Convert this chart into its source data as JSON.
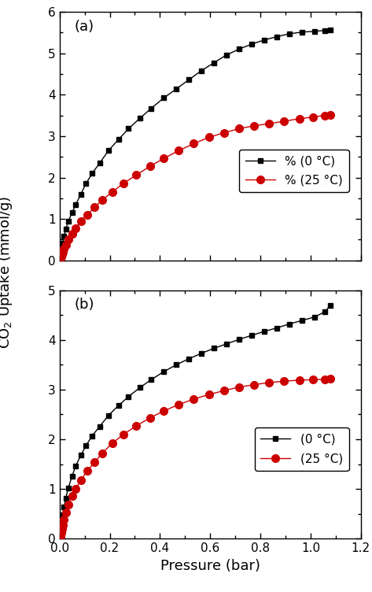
{
  "panel_a": {
    "label": "(a)",
    "black_x": [
      0.001,
      0.003,
      0.006,
      0.009,
      0.013,
      0.018,
      0.025,
      0.035,
      0.05,
      0.065,
      0.085,
      0.105,
      0.13,
      0.16,
      0.195,
      0.235,
      0.275,
      0.32,
      0.365,
      0.415,
      0.465,
      0.515,
      0.565,
      0.615,
      0.665,
      0.715,
      0.765,
      0.815,
      0.865,
      0.915,
      0.965,
      1.015,
      1.055,
      1.08
    ],
    "black_y": [
      0.04,
      0.1,
      0.18,
      0.28,
      0.42,
      0.58,
      0.75,
      0.95,
      1.15,
      1.35,
      1.6,
      1.85,
      2.1,
      2.35,
      2.65,
      2.92,
      3.18,
      3.43,
      3.67,
      3.92,
      4.14,
      4.36,
      4.58,
      4.77,
      4.96,
      5.1,
      5.22,
      5.32,
      5.4,
      5.47,
      5.51,
      5.53,
      5.55,
      5.56
    ],
    "red_x": [
      0.001,
      0.003,
      0.006,
      0.009,
      0.013,
      0.018,
      0.025,
      0.035,
      0.05,
      0.065,
      0.085,
      0.11,
      0.14,
      0.17,
      0.21,
      0.255,
      0.305,
      0.36,
      0.415,
      0.475,
      0.535,
      0.595,
      0.655,
      0.715,
      0.775,
      0.835,
      0.895,
      0.955,
      1.01,
      1.055,
      1.08
    ],
    "red_y": [
      0.02,
      0.05,
      0.09,
      0.14,
      0.2,
      0.28,
      0.38,
      0.5,
      0.65,
      0.78,
      0.95,
      1.1,
      1.28,
      1.46,
      1.65,
      1.86,
      2.06,
      2.27,
      2.46,
      2.65,
      2.82,
      2.97,
      3.08,
      3.18,
      3.25,
      3.3,
      3.36,
      3.42,
      3.46,
      3.5,
      3.52
    ],
    "legend_black": "% (0 °C)",
    "legend_red": "% (25 °C)",
    "ylim": [
      0,
      6
    ],
    "yticks": [
      0,
      1,
      2,
      3,
      4,
      5,
      6
    ]
  },
  "panel_b": {
    "label": "(b)",
    "black_x": [
      0.001,
      0.003,
      0.006,
      0.009,
      0.013,
      0.018,
      0.025,
      0.035,
      0.05,
      0.065,
      0.085,
      0.105,
      0.13,
      0.16,
      0.195,
      0.235,
      0.275,
      0.32,
      0.365,
      0.415,
      0.465,
      0.515,
      0.565,
      0.615,
      0.665,
      0.715,
      0.765,
      0.815,
      0.865,
      0.915,
      0.965,
      1.015,
      1.055,
      1.08
    ],
    "black_y": [
      0.04,
      0.12,
      0.22,
      0.33,
      0.48,
      0.64,
      0.82,
      1.02,
      1.26,
      1.47,
      1.68,
      1.87,
      2.07,
      2.26,
      2.48,
      2.68,
      2.86,
      3.04,
      3.2,
      3.36,
      3.5,
      3.62,
      3.73,
      3.83,
      3.92,
      4.01,
      4.09,
      4.17,
      4.24,
      4.32,
      4.39,
      4.46,
      4.56,
      4.7
    ],
    "red_x": [
      0.001,
      0.003,
      0.006,
      0.009,
      0.013,
      0.018,
      0.025,
      0.035,
      0.05,
      0.065,
      0.085,
      0.11,
      0.14,
      0.17,
      0.21,
      0.255,
      0.305,
      0.36,
      0.415,
      0.475,
      0.535,
      0.595,
      0.655,
      0.715,
      0.775,
      0.835,
      0.895,
      0.955,
      1.01,
      1.055,
      1.08
    ],
    "red_y": [
      0.02,
      0.06,
      0.12,
      0.19,
      0.28,
      0.39,
      0.52,
      0.68,
      0.86,
      1.01,
      1.18,
      1.36,
      1.54,
      1.72,
      1.92,
      2.1,
      2.27,
      2.43,
      2.57,
      2.7,
      2.81,
      2.9,
      2.98,
      3.05,
      3.1,
      3.14,
      3.17,
      3.19,
      3.2,
      3.21,
      3.22
    ],
    "legend_black": "(0 °C)",
    "legend_red": "(25 °C)",
    "ylim": [
      0,
      5
    ],
    "yticks": [
      0,
      1,
      2,
      3,
      4,
      5
    ]
  },
  "xlim": [
    0,
    1.2
  ],
  "xticks": [
    0.0,
    0.2,
    0.4,
    0.6,
    0.8,
    1.0,
    1.2
  ],
  "xlabel": "Pressure (bar)",
  "ylabel": "CO$_2$ Uptake (mmol/g)",
  "black_color": "#000000",
  "red_color": "#cc0000",
  "marker_black": "s",
  "marker_red": "o",
  "marker_size_black": 5,
  "marker_size_red": 7,
  "line_width": 1.0,
  "font_size_label": 13,
  "font_size_tick": 11,
  "font_size_legend": 11,
  "font_size_panel_label": 13
}
